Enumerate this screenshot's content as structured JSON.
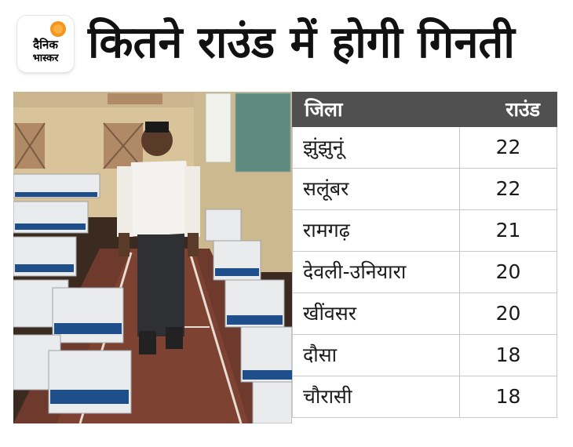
{
  "logo": {
    "line1": "दैनिक",
    "line2": "भास्कर",
    "sun_color": "#f7941d"
  },
  "title": "कितने राउंड में होगी गिनती",
  "table": {
    "header": {
      "district": "जिला",
      "rounds": "राउंड"
    },
    "rows": [
      {
        "district": "झुंझुनूं",
        "rounds": "22"
      },
      {
        "district": "सलूंबर",
        "rounds": "22"
      },
      {
        "district": "रामगढ़",
        "rounds": "21"
      },
      {
        "district": "देवली-उनियारा",
        "rounds": "20"
      },
      {
        "district": "खींवसर",
        "rounds": "20"
      },
      {
        "district": "दौसा",
        "rounds": "18"
      },
      {
        "district": "चौरासी",
        "rounds": "18"
      }
    ]
  },
  "colors": {
    "header_bg": "#505050",
    "border": "#c8c8c8",
    "accent": "#f7941d"
  }
}
